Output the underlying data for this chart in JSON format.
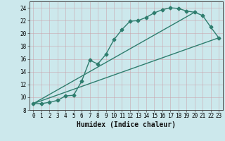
{
  "xlabel": "Humidex (Indice chaleur)",
  "bg_color": "#cce8ec",
  "grid_color": "#b0d4d8",
  "line_color": "#2e7d6e",
  "xlim": [
    -0.5,
    23.5
  ],
  "ylim": [
    8,
    25
  ],
  "xticks": [
    0,
    1,
    2,
    3,
    4,
    5,
    6,
    7,
    8,
    9,
    10,
    11,
    12,
    13,
    14,
    15,
    16,
    17,
    18,
    19,
    20,
    21,
    22,
    23
  ],
  "yticks": [
    8,
    10,
    12,
    14,
    16,
    18,
    20,
    22,
    24
  ],
  "curve1_x": [
    0,
    1,
    2,
    3,
    4,
    5,
    6,
    7,
    8,
    9,
    10,
    11,
    12,
    13,
    14,
    15,
    16,
    17,
    18,
    19,
    20,
    21,
    22,
    23
  ],
  "curve1_y": [
    9.0,
    9.0,
    9.2,
    9.5,
    10.2,
    10.3,
    12.5,
    15.8,
    15.2,
    16.7,
    19.0,
    20.6,
    21.9,
    22.0,
    22.5,
    23.2,
    23.7,
    24.0,
    23.9,
    23.5,
    23.3,
    22.8,
    21.0,
    19.3
  ],
  "curve2_x": [
    0,
    23
  ],
  "curve2_y": [
    9.0,
    19.3
  ],
  "curve3_x": [
    0,
    20
  ],
  "curve3_y": [
    9.0,
    23.3
  ],
  "marker_style": "D",
  "marker_size": 2.5,
  "line_width": 1.0,
  "tick_fontsize": 5.5,
  "xlabel_fontsize": 7
}
